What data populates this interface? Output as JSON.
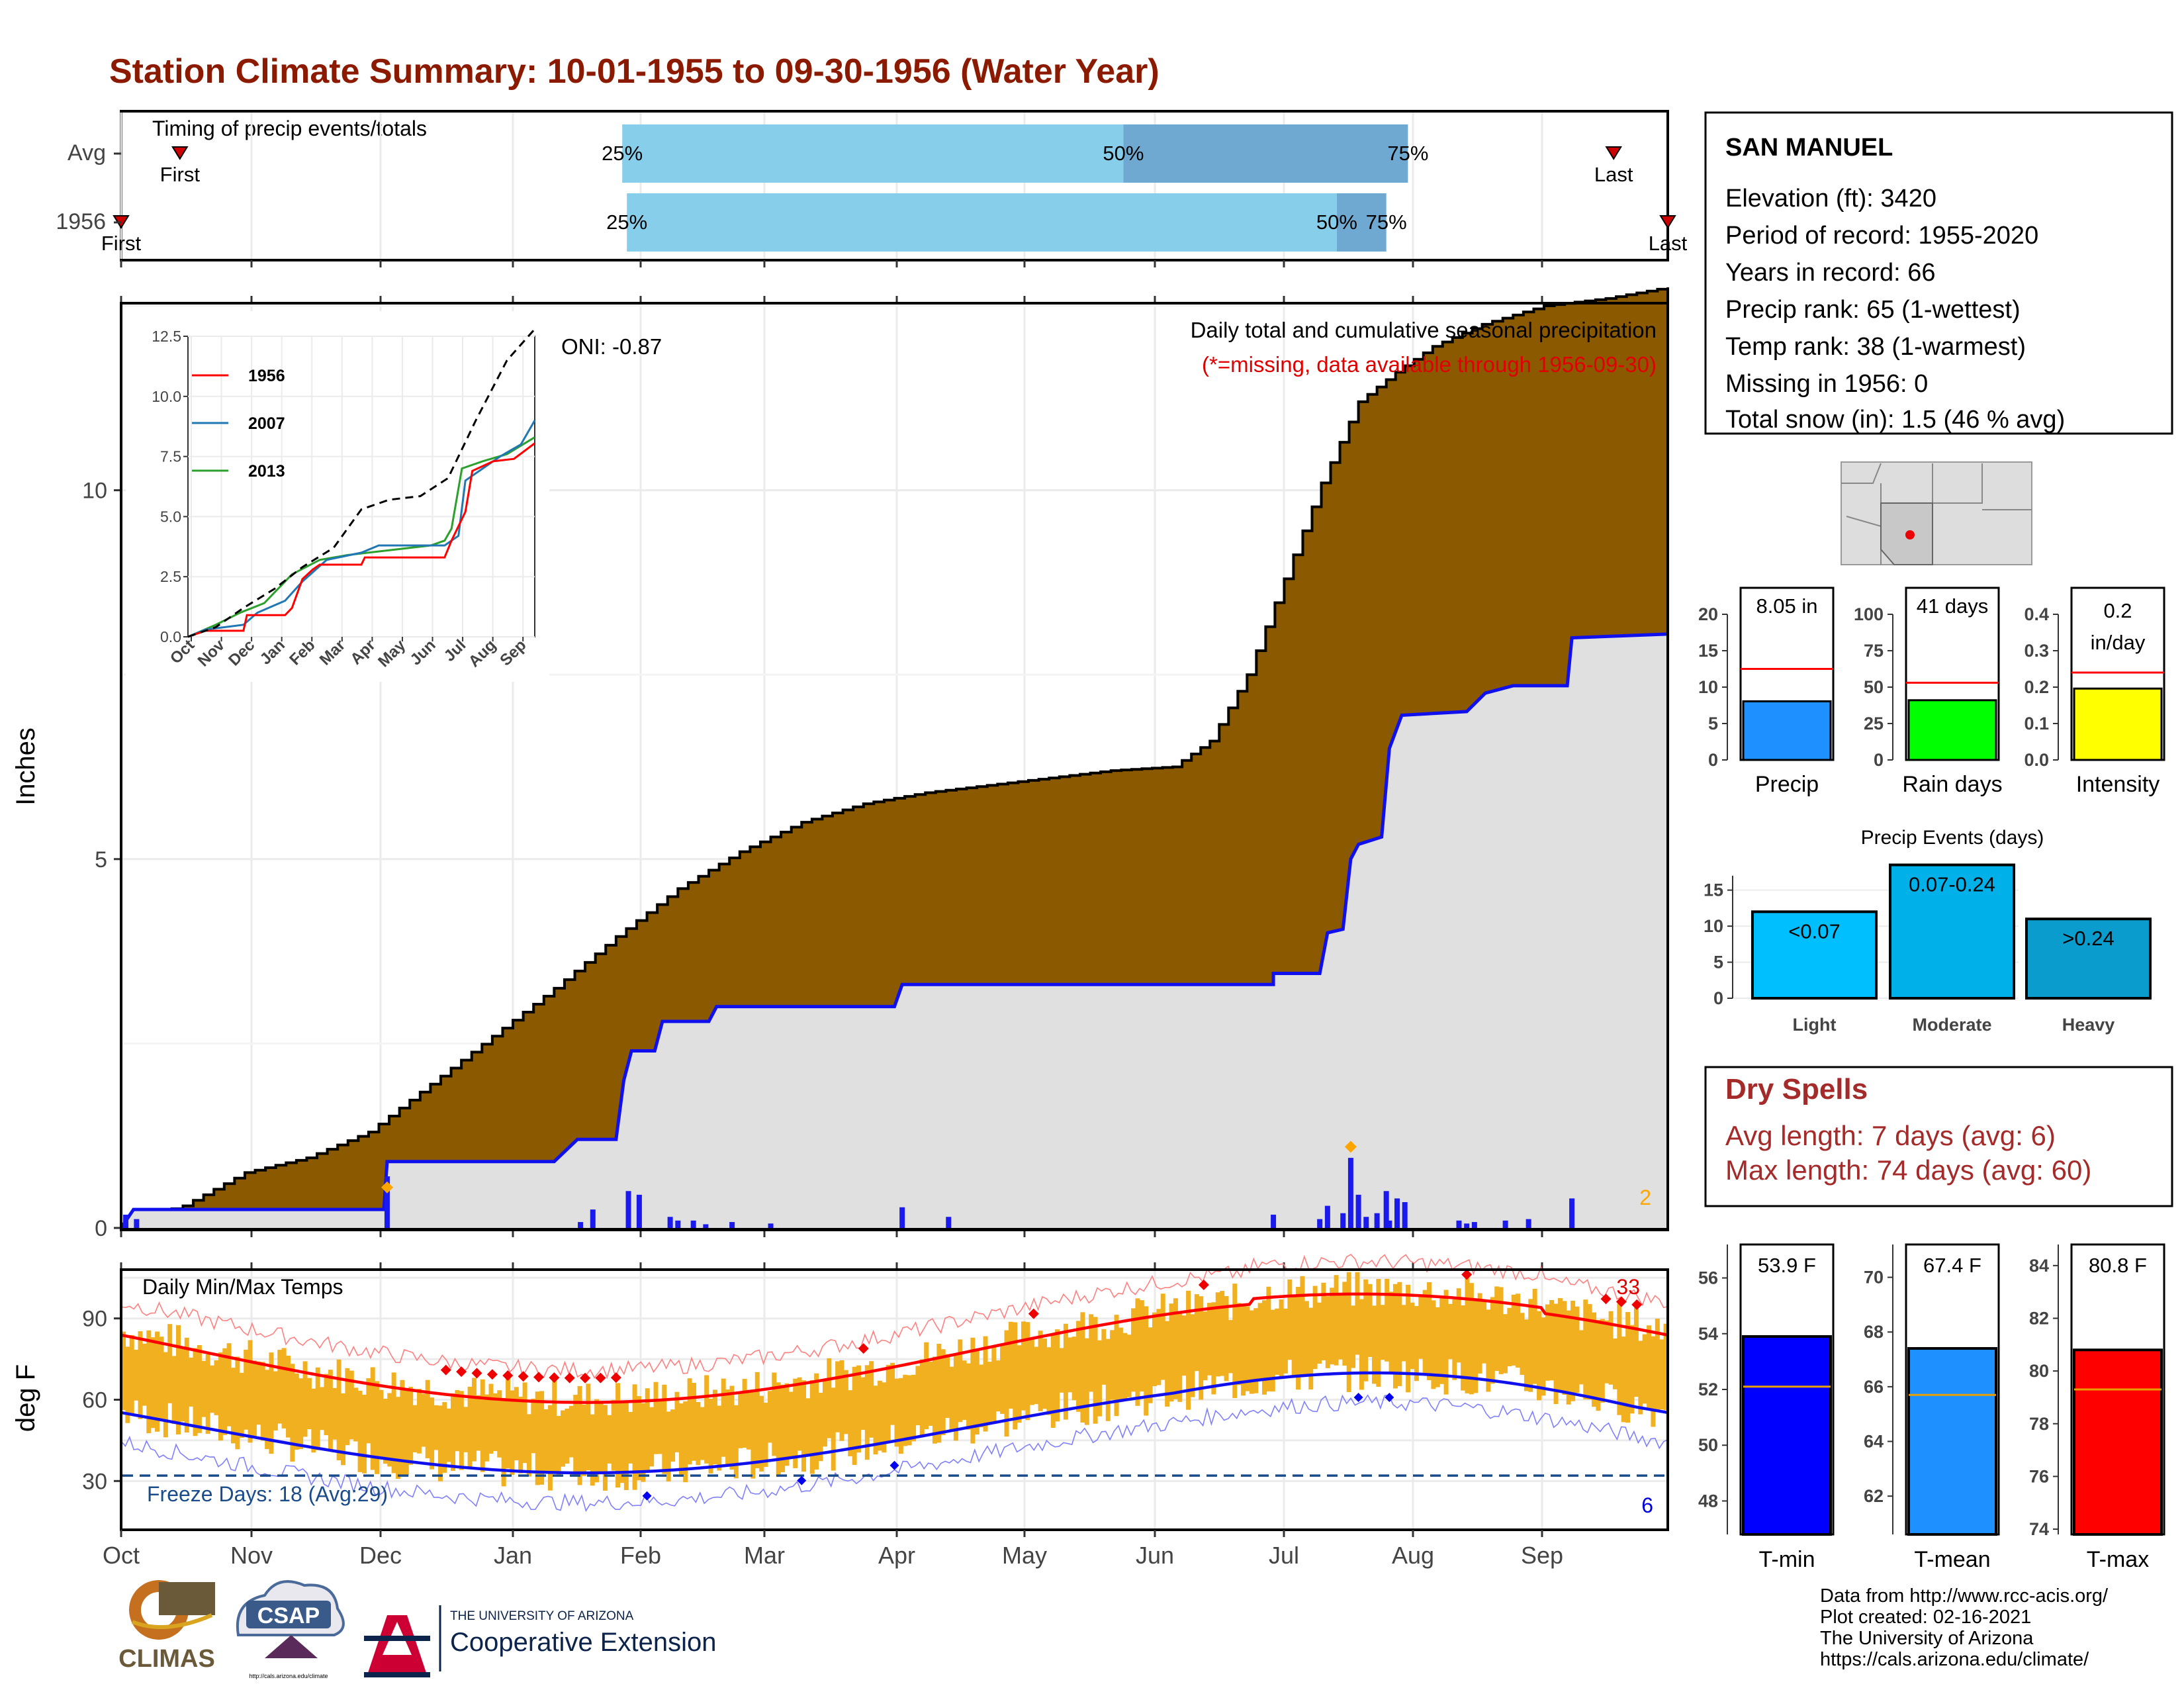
{
  "title": "Station Climate Summary: 10-01-1955 to 09-30-1956 (Water Year)",
  "months": [
    "Oct",
    "Nov",
    "Dec",
    "Jan",
    "Feb",
    "Mar",
    "Apr",
    "May",
    "Jun",
    "Jul",
    "Aug",
    "Sep"
  ],
  "timing": {
    "label": "Timing of precip events/totals",
    "rows": [
      {
        "name": "Avg",
        "p25": 0.324,
        "p50": 0.648,
        "p75": 0.832,
        "first": 0.038,
        "last": 0.965,
        "first_label": "First",
        "last_label": "Last"
      },
      {
        "name": "1956",
        "p25": 0.327,
        "p50": 0.786,
        "p75": 0.818,
        "first": 0.0,
        "last": 1.0,
        "first_label": "First",
        "last_label": "Last"
      }
    ],
    "pct_labels": [
      "25%",
      "50%",
      "75%"
    ],
    "colors": {
      "light": "#87ceeb",
      "dark": "#6fa8d0",
      "marker": "#cc0000"
    }
  },
  "precip": {
    "ylabel": "Inches",
    "yticks": [
      0,
      5,
      10
    ],
    "ylim": [
      0,
      12.5
    ],
    "desc": "Daily total and cumulative seasonal precipitation",
    "missing_note": "(*=missing, data available through 1956-09-30)",
    "oni": "ONI: -0.87",
    "missing_count": "2",
    "avg_cumulative": [
      [
        0,
        0
      ],
      [
        0.005,
        0.1
      ],
      [
        0.05,
        0.3
      ],
      [
        0.1,
        0.75
      ],
      [
        0.15,
        0.95
      ],
      [
        0.2,
        1.3
      ],
      [
        0.25,
        1.95
      ],
      [
        0.3,
        2.6
      ],
      [
        0.35,
        3.25
      ],
      [
        0.4,
        3.95
      ],
      [
        0.45,
        4.6
      ],
      [
        0.5,
        5.1
      ],
      [
        0.55,
        5.5
      ],
      [
        0.6,
        5.75
      ],
      [
        0.65,
        5.9
      ],
      [
        0.7,
        6.0
      ],
      [
        0.75,
        6.1
      ],
      [
        0.8,
        6.2
      ],
      [
        0.85,
        6.25
      ],
      [
        0.88,
        6.6
      ],
      [
        0.91,
        7.5
      ],
      [
        0.94,
        8.8
      ],
      [
        0.97,
        10.1
      ],
      [
        1.0,
        11.2
      ],
      [
        1.03,
        11.6
      ],
      [
        1.06,
        11.95
      ],
      [
        1.1,
        12.25
      ],
      [
        1.15,
        12.5
      ],
      [
        1.2,
        12.6
      ],
      [
        1.25,
        12.75
      ]
    ],
    "cumulative_1956": [
      [
        0,
        0
      ],
      [
        0.008,
        0.25
      ],
      [
        0.17,
        0.25
      ],
      [
        0.17,
        0.28
      ],
      [
        0.172,
        0.9
      ],
      [
        0.28,
        0.9
      ],
      [
        0.295,
        1.2
      ],
      [
        0.32,
        1.2
      ],
      [
        0.325,
        2.0
      ],
      [
        0.33,
        2.4
      ],
      [
        0.345,
        2.4
      ],
      [
        0.35,
        2.8
      ],
      [
        0.38,
        2.8
      ],
      [
        0.385,
        3.0
      ],
      [
        0.5,
        3.0
      ],
      [
        0.505,
        3.3
      ],
      [
        0.745,
        3.3
      ],
      [
        0.745,
        3.45
      ],
      [
        0.775,
        3.45
      ],
      [
        0.78,
        4.0
      ],
      [
        0.79,
        4.05
      ],
      [
        0.795,
        5.0
      ],
      [
        0.8,
        5.2
      ],
      [
        0.815,
        5.3
      ],
      [
        0.82,
        6.5
      ],
      [
        0.828,
        6.95
      ],
      [
        0.87,
        7.0
      ],
      [
        0.882,
        7.25
      ],
      [
        0.9,
        7.35
      ],
      [
        0.935,
        7.35
      ],
      [
        0.938,
        8.0
      ],
      [
        1.0,
        8.05
      ]
    ],
    "daily_bars": [
      [
        0.003,
        0.18
      ],
      [
        0.01,
        0.12
      ],
      [
        0.172,
        0.7
      ],
      [
        0.297,
        0.08
      ],
      [
        0.305,
        0.25
      ],
      [
        0.328,
        0.5
      ],
      [
        0.335,
        0.45
      ],
      [
        0.355,
        0.15
      ],
      [
        0.36,
        0.1
      ],
      [
        0.37,
        0.1
      ],
      [
        0.378,
        0.05
      ],
      [
        0.395,
        0.08
      ],
      [
        0.42,
        0.06
      ],
      [
        0.505,
        0.28
      ],
      [
        0.535,
        0.15
      ],
      [
        0.745,
        0.18
      ],
      [
        0.775,
        0.12
      ],
      [
        0.78,
        0.3
      ],
      [
        0.79,
        0.2
      ],
      [
        0.795,
        0.95
      ],
      [
        0.8,
        0.45
      ],
      [
        0.805,
        0.15
      ],
      [
        0.812,
        0.2
      ],
      [
        0.818,
        0.5
      ],
      [
        0.82,
        0.1
      ],
      [
        0.825,
        0.4
      ],
      [
        0.83,
        0.35
      ],
      [
        0.865,
        0.1
      ],
      [
        0.87,
        0.06
      ],
      [
        0.875,
        0.08
      ],
      [
        0.895,
        0.1
      ],
      [
        0.91,
        0.12
      ],
      [
        0.938,
        0.4
      ]
    ],
    "missing_marks": [
      [
        0.172,
        0.55
      ],
      [
        0.795,
        1.1
      ]
    ],
    "colors": {
      "area": "#8b5a00",
      "cum_line": "#1010ee",
      "fill_below": "#e0e0e0",
      "bars": "#1a1aee",
      "missing": "#ffa500"
    }
  },
  "inset": {
    "yticks": [
      "0.0",
      "2.5",
      "5.0",
      "7.5",
      "10.0",
      "12.5"
    ],
    "ylim": [
      0,
      12.5
    ],
    "legend": [
      {
        "name": "1956",
        "color": "#ff0000"
      },
      {
        "name": "2007",
        "color": "#1f77b4"
      },
      {
        "name": "2013",
        "color": "#2ca02c"
      }
    ],
    "avg_line": [
      [
        0,
        0
      ],
      [
        0.08,
        0.4
      ],
      [
        0.16,
        1.2
      ],
      [
        0.25,
        2.0
      ],
      [
        0.33,
        2.9
      ],
      [
        0.42,
        3.7
      ],
      [
        0.5,
        5.3
      ],
      [
        0.58,
        5.7
      ],
      [
        0.67,
        5.85
      ],
      [
        0.75,
        6.6
      ],
      [
        0.83,
        9.0
      ],
      [
        0.92,
        11.5
      ],
      [
        1.0,
        12.8
      ]
    ],
    "series_1956": [
      [
        0,
        0
      ],
      [
        0.05,
        0.25
      ],
      [
        0.16,
        0.25
      ],
      [
        0.17,
        0.9
      ],
      [
        0.28,
        0.9
      ],
      [
        0.3,
        1.2
      ],
      [
        0.33,
        2.4
      ],
      [
        0.36,
        2.8
      ],
      [
        0.38,
        3.0
      ],
      [
        0.5,
        3.0
      ],
      [
        0.51,
        3.3
      ],
      [
        0.74,
        3.3
      ],
      [
        0.76,
        4.0
      ],
      [
        0.8,
        5.2
      ],
      [
        0.82,
        6.9
      ],
      [
        0.88,
        7.3
      ],
      [
        0.94,
        7.4
      ],
      [
        1.0,
        8.05
      ]
    ],
    "series_2007": [
      [
        0,
        0
      ],
      [
        0.05,
        0.3
      ],
      [
        0.16,
        0.5
      ],
      [
        0.2,
        1.0
      ],
      [
        0.28,
        1.5
      ],
      [
        0.33,
        2.3
      ],
      [
        0.4,
        3.2
      ],
      [
        0.5,
        3.5
      ],
      [
        0.55,
        3.8
      ],
      [
        0.74,
        3.8
      ],
      [
        0.78,
        4.2
      ],
      [
        0.8,
        6.5
      ],
      [
        0.85,
        7.0
      ],
      [
        0.9,
        7.5
      ],
      [
        0.96,
        8.0
      ],
      [
        1.0,
        9.0
      ]
    ],
    "series_2013": [
      [
        0,
        0
      ],
      [
        0.08,
        0.5
      ],
      [
        0.15,
        1.0
      ],
      [
        0.22,
        1.4
      ],
      [
        0.3,
        2.6
      ],
      [
        0.38,
        3.2
      ],
      [
        0.46,
        3.4
      ],
      [
        0.58,
        3.6
      ],
      [
        0.7,
        3.8
      ],
      [
        0.74,
        4.0
      ],
      [
        0.76,
        4.5
      ],
      [
        0.79,
        7.0
      ],
      [
        0.85,
        7.3
      ],
      [
        0.92,
        7.6
      ],
      [
        1.0,
        8.3
      ]
    ]
  },
  "temps": {
    "label": "Daily Min/Max Temps",
    "ylabel": "deg F",
    "yticks": [
      30,
      60,
      90
    ],
    "ylim": [
      12,
      108
    ],
    "freeze_label": "Freeze Days: 18 (Avg:29)",
    "freeze_line": 32,
    "max_count": "33",
    "min_count": "6",
    "colors": {
      "range": "#f0b020",
      "avg_max": "#ff0000",
      "avg_min": "#1010ee",
      "rec_max": "#ff8080",
      "rec_min": "#8080ff",
      "freeze": "#1a4c8c"
    }
  },
  "station": {
    "name": "SAN MANUEL",
    "lines": [
      "Elevation (ft): 3420",
      "Period of record: 1955-2020",
      "Years in record: 66",
      "Precip rank: 65 (1-wettest)",
      "Temp rank: 38 (1-warmest)",
      "Missing in 1956: 0",
      "Total snow (in): 1.5 (46 % avg)"
    ]
  },
  "mini_bars": [
    {
      "label": "Precip",
      "value_label": "8.05 in",
      "value": 8.05,
      "avg": 12.5,
      "yticks": [
        "0",
        "5",
        "10",
        "15",
        "20"
      ],
      "ymax": 20,
      "color": "#1e90ff"
    },
    {
      "label": "Rain days",
      "value_label": "41 days",
      "value": 41,
      "avg": 53,
      "yticks": [
        "0",
        "25",
        "50",
        "75",
        "100"
      ],
      "ymax": 100,
      "color": "#00ff00"
    },
    {
      "label": "Intensity",
      "value_label": "0.2 in/day",
      "value_line1": "0.2",
      "value_line2": "in/day",
      "value": 0.196,
      "avg": 0.24,
      "yticks": [
        "0.0",
        "0.1",
        "0.2",
        "0.3",
        "0.4"
      ],
      "ymax": 0.4,
      "color": "#ffff00"
    }
  ],
  "events": {
    "title": "Precip Events (days)",
    "yticks": [
      "0",
      "5",
      "10",
      "15"
    ],
    "ymax": 18,
    "bars": [
      {
        "label": "Light",
        "value_label": "<0.07",
        "value": 12,
        "color": "#00bfff"
      },
      {
        "label": "Moderate",
        "value_label": "0.07-0.24",
        "value": 18.5,
        "color": "#00b0e8"
      },
      {
        "label": "Heavy",
        "value_label": ">0.24",
        "value": 11,
        "color": "#0a9ccc"
      }
    ]
  },
  "dry_spells": {
    "title": "Dry Spells",
    "lines": [
      "Avg length: 7 days (avg: 6)",
      "Max length: 74 days (avg: 60)"
    ],
    "color": "#a52a2a"
  },
  "temp_bars": [
    {
      "label": "T-min",
      "value_label": "53.9 F",
      "value": 53.9,
      "avg": 52.1,
      "yticks": [
        "48",
        "50",
        "52",
        "54",
        "56"
      ],
      "ymin": 46.8,
      "ymax": 57.2,
      "color": "#0000ff"
    },
    {
      "label": "T-mean",
      "value_label": "67.4 F",
      "value": 67.4,
      "avg": 65.7,
      "yticks": [
        "62",
        "64",
        "66",
        "68",
        "70"
      ],
      "ymin": 60.6,
      "ymax": 71.2,
      "color": "#1e90ff"
    },
    {
      "label": "T-max",
      "value_label": "80.8 F",
      "value": 80.8,
      "avg": 79.3,
      "yticks": [
        "74",
        "76",
        "78",
        "80",
        "82",
        "84"
      ],
      "ymin": 73.8,
      "ymax": 84.8,
      "color": "#ff0000"
    }
  ],
  "footer": {
    "credits": [
      "Data from http://www.rcc-acis.org/",
      "Plot created: 02-16-2021",
      "The University of Arizona",
      "https://cals.arizona.edu/climate/"
    ],
    "climas": "CLIMAS",
    "csap": "CSAP",
    "csap_url": "http://cals.arizona.edu/climate",
    "ua_small": "THE UNIVERSITY OF ARIZONA",
    "ua_big": "Cooperative Extension"
  }
}
